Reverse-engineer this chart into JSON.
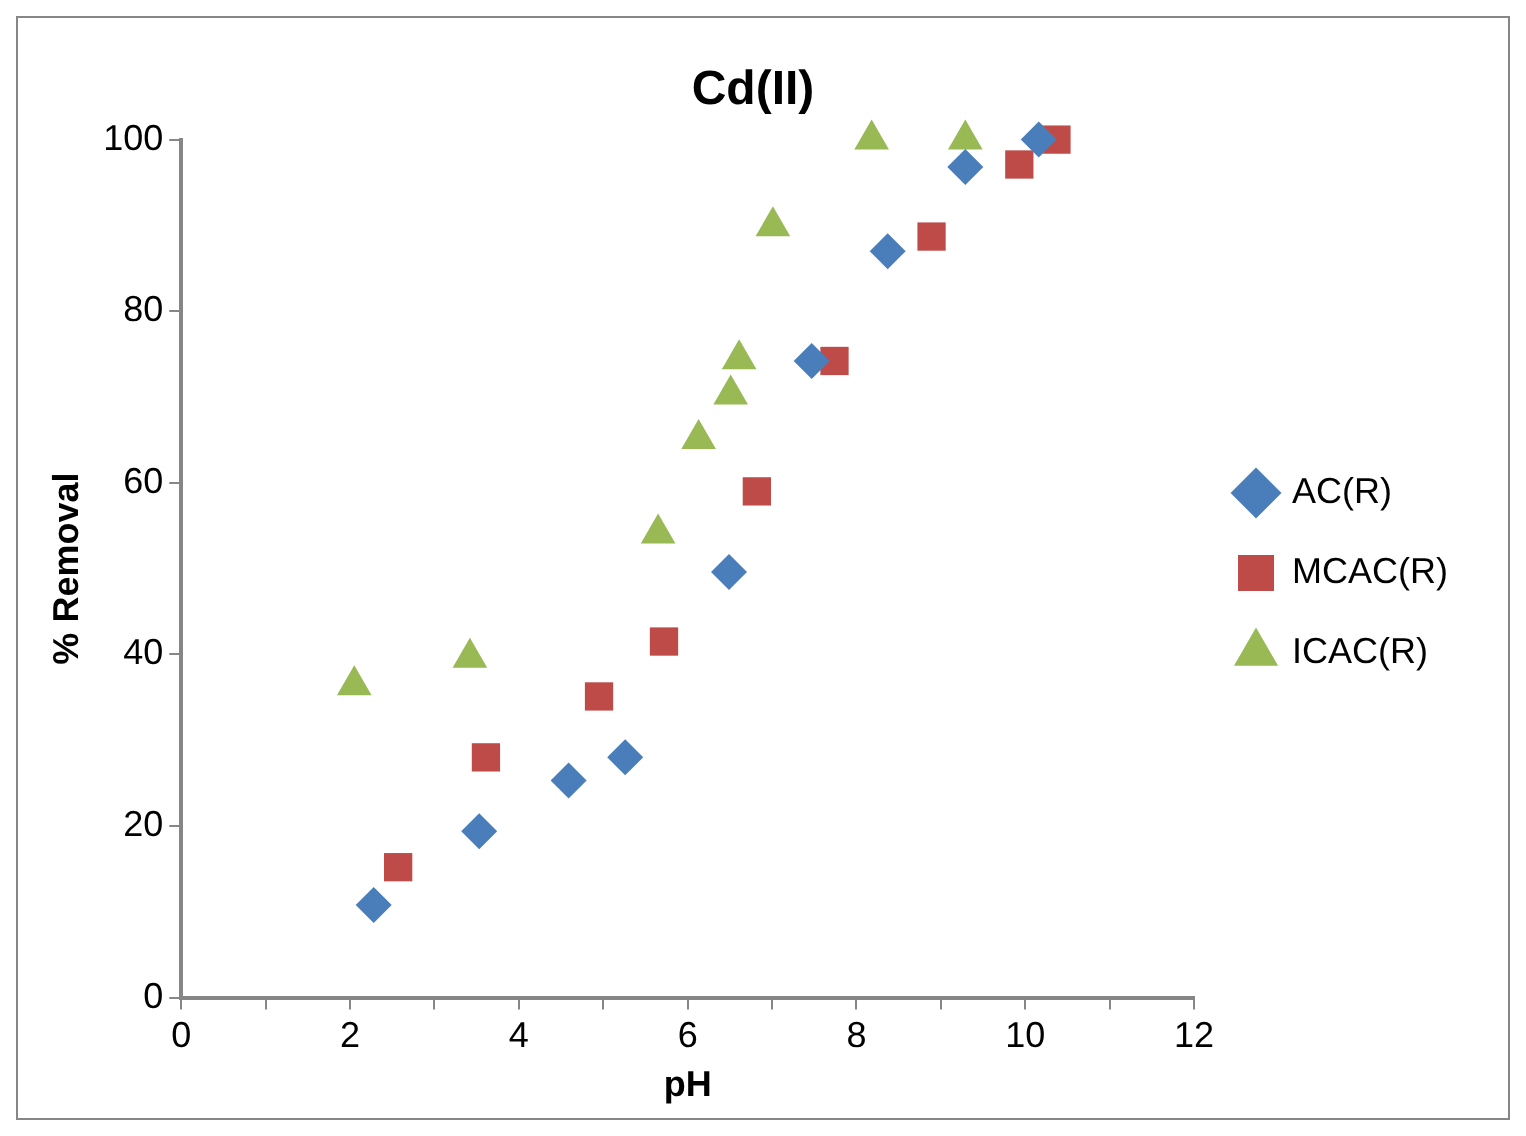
{
  "chart_data": {
    "type": "scatter",
    "title": "Cd(II)",
    "xlabel": "pH",
    "ylabel": "% Removal",
    "xlim": [
      0,
      12
    ],
    "ylim": [
      0,
      100
    ],
    "xticks": [
      0,
      {
        "value": 1,
        "label": null
      },
      2,
      {
        "value": 3,
        "label": null
      },
      4,
      {
        "value": 5,
        "label": null
      },
      6,
      {
        "value": 7,
        "label": null
      },
      8,
      {
        "value": 9,
        "label": null
      },
      10,
      {
        "value": 11,
        "label": null
      },
      12
    ],
    "yticks": [
      0,
      20,
      40,
      60,
      80,
      100
    ],
    "grid": false,
    "legend": "right",
    "series": [
      {
        "name": "AC(R)",
        "color": "#4a7ebb",
        "marker": "diamond",
        "x": [
          2.28,
          3.53,
          4.59,
          5.26,
          6.49,
          7.47,
          8.37,
          9.29,
          10.16
        ],
        "values": [
          10.8,
          19.4,
          25.3,
          28.0,
          49.6,
          74.2,
          87.0,
          96.8,
          100
        ]
      },
      {
        "name": "MCAC(R)",
        "color": "#be4b48",
        "marker": "square",
        "x": [
          2.57,
          3.61,
          4.95,
          5.72,
          6.82,
          7.74,
          8.89,
          9.93,
          10.37
        ],
        "values": [
          15.2,
          28.0,
          35.1,
          41.5,
          59.0,
          74.2,
          88.7,
          97.1,
          100
        ]
      },
      {
        "name": "ICAC(R)",
        "color": "#98b954",
        "marker": "triangle",
        "x": [
          2.05,
          3.42,
          5.65,
          6.13,
          6.51,
          6.61,
          7.01,
          8.18,
          9.29
        ],
        "values": [
          36.4,
          39.6,
          54.1,
          65.1,
          70.3,
          74.4,
          89.9,
          100,
          100
        ]
      }
    ]
  }
}
